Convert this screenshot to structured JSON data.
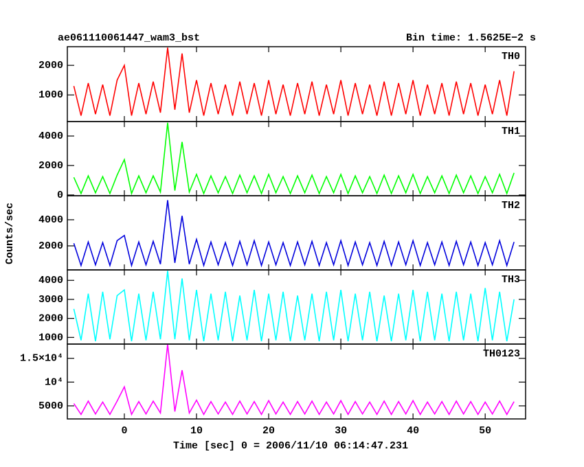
{
  "chart_data": [
    {
      "type": "line",
      "title": "ae061110061447_wam3_bst",
      "subtitle": "Bin time: 1.5625E−2 s",
      "x": [
        -7,
        -6,
        -5,
        -4,
        -3,
        -2,
        -1,
        0,
        1,
        2,
        3,
        4,
        5,
        6,
        7,
        8,
        9,
        10,
        11,
        12,
        13,
        14,
        15,
        16,
        17,
        18,
        19,
        20,
        21,
        22,
        23,
        24,
        25,
        26,
        27,
        28,
        29,
        30,
        31,
        32,
        33,
        34,
        35,
        36,
        37,
        38,
        39,
        40,
        41,
        42,
        43,
        44,
        45,
        46,
        47,
        48,
        49,
        50,
        51,
        52,
        53,
        54
      ],
      "series": [
        {
          "name": "TH0",
          "color": "#ff0000",
          "values": [
            1300,
            300,
            1400,
            350,
            1350,
            300,
            1500,
            2000,
            300,
            1400,
            350,
            1450,
            400,
            2600,
            500,
            2400,
            400,
            1500,
            300,
            1400,
            350,
            1350,
            300,
            1450,
            350,
            1400,
            300,
            1500,
            350,
            1350,
            300,
            1400,
            350,
            1450,
            300,
            1350,
            350,
            1500,
            300,
            1400,
            350,
            1350,
            300,
            1450,
            300,
            1400,
            350,
            1500,
            300,
            1350,
            350,
            1400,
            300,
            1450,
            350,
            1400,
            300,
            1350,
            350,
            1500,
            300,
            1800
          ]
        }
      ],
      "xlim": [
        -7.9,
        55.6
      ],
      "xticks": [
        0,
        10,
        20,
        30,
        40,
        50
      ],
      "ylim": [
        100,
        2630
      ],
      "yticks": [
        1000,
        2000
      ]
    },
    {
      "type": "line",
      "x": [
        -7,
        -6,
        -5,
        -4,
        -3,
        -2,
        -1,
        0,
        1,
        2,
        3,
        4,
        5,
        6,
        7,
        8,
        9,
        10,
        11,
        12,
        13,
        14,
        15,
        16,
        17,
        18,
        19,
        20,
        21,
        22,
        23,
        24,
        25,
        26,
        27,
        28,
        29,
        30,
        31,
        32,
        33,
        34,
        35,
        36,
        37,
        38,
        39,
        40,
        41,
        42,
        43,
        44,
        45,
        46,
        47,
        48,
        49,
        50,
        51,
        52,
        53,
        54
      ],
      "series": [
        {
          "name": "TH1",
          "color": "#00ff00",
          "values": [
            1200,
            100,
            1300,
            150,
            1250,
            100,
            1350,
            2400,
            100,
            1300,
            150,
            1300,
            200,
            4900,
            300,
            3600,
            200,
            1400,
            100,
            1300,
            150,
            1250,
            100,
            1350,
            150,
            1300,
            100,
            1400,
            150,
            1250,
            100,
            1300,
            150,
            1350,
            100,
            1250,
            150,
            1400,
            100,
            1300,
            150,
            1250,
            100,
            1350,
            100,
            1300,
            150,
            1400,
            100,
            1250,
            150,
            1300,
            100,
            1350,
            150,
            1300,
            100,
            1250,
            150,
            1400,
            100,
            1500
          ]
        }
      ],
      "xlim": [
        -7.9,
        55.6
      ],
      "xticks": [
        0,
        10,
        20,
        30,
        40,
        50
      ],
      "ylim": [
        -50,
        4980
      ],
      "yticks": [
        0,
        2000,
        4000
      ]
    },
    {
      "type": "line",
      "ylabel": "Counts/sec",
      "x": [
        -7,
        -6,
        -5,
        -4,
        -3,
        -2,
        -1,
        0,
        1,
        2,
        3,
        4,
        5,
        6,
        7,
        8,
        9,
        10,
        11,
        12,
        13,
        14,
        15,
        16,
        17,
        18,
        19,
        20,
        21,
        22,
        23,
        24,
        25,
        26,
        27,
        28,
        29,
        30,
        31,
        32,
        33,
        34,
        35,
        36,
        37,
        38,
        39,
        40,
        41,
        42,
        43,
        44,
        45,
        46,
        47,
        48,
        49,
        50,
        51,
        52,
        53,
        54
      ],
      "series": [
        {
          "name": "TH2",
          "color": "#0000dd",
          "values": [
            2200,
            500,
            2300,
            550,
            2250,
            500,
            2400,
            2800,
            500,
            2300,
            550,
            2350,
            600,
            5500,
            700,
            4300,
            600,
            2500,
            500,
            2300,
            550,
            2250,
            500,
            2350,
            550,
            2400,
            500,
            2300,
            550,
            2250,
            500,
            2300,
            550,
            2350,
            500,
            2250,
            550,
            2400,
            500,
            2300,
            550,
            2250,
            500,
            2350,
            500,
            2300,
            550,
            2400,
            500,
            2250,
            550,
            2300,
            500,
            2350,
            550,
            2300,
            500,
            2250,
            550,
            2400,
            500,
            2300
          ]
        }
      ],
      "xlim": [
        -7.9,
        55.6
      ],
      "xticks": [
        0,
        10,
        20,
        30,
        40,
        50
      ],
      "ylim": [
        160,
        5840
      ],
      "yticks": [
        2000,
        4000
      ]
    },
    {
      "type": "line",
      "x": [
        -7,
        -6,
        -5,
        -4,
        -3,
        -2,
        -1,
        0,
        1,
        2,
        3,
        4,
        5,
        6,
        7,
        8,
        9,
        10,
        11,
        12,
        13,
        14,
        15,
        16,
        17,
        18,
        19,
        20,
        21,
        22,
        23,
        24,
        25,
        26,
        27,
        28,
        29,
        30,
        31,
        32,
        33,
        34,
        35,
        36,
        37,
        38,
        39,
        40,
        41,
        42,
        43,
        44,
        45,
        46,
        47,
        48,
        49,
        50,
        51,
        52,
        53,
        54
      ],
      "series": [
        {
          "name": "TH3",
          "color": "#00ffff",
          "values": [
            2500,
            850,
            3300,
            800,
            3400,
            900,
            3200,
            3500,
            800,
            3300,
            850,
            3400,
            900,
            4500,
            900,
            4100,
            850,
            3500,
            800,
            3300,
            850,
            3400,
            800,
            3200,
            850,
            3500,
            800,
            3300,
            850,
            3400,
            800,
            3200,
            850,
            3300,
            800,
            3400,
            850,
            3500,
            800,
            3300,
            850,
            3400,
            800,
            3200,
            800,
            3300,
            850,
            3500,
            800,
            3400,
            850,
            3300,
            800,
            3400,
            850,
            3300,
            800,
            3600,
            850,
            3400,
            800,
            3000
          ]
        }
      ],
      "xlim": [
        -7.9,
        55.6
      ],
      "xticks": [
        0,
        10,
        20,
        30,
        40,
        50
      ],
      "ylim": [
        650,
        4550
      ],
      "yticks": [
        1000,
        2000,
        3000,
        4000
      ]
    },
    {
      "type": "line",
      "xlabel": "Time [sec] 0 = 2006/11/10 06:14:47.231",
      "x": [
        -7,
        -6,
        -5,
        -4,
        -3,
        -2,
        -1,
        0,
        1,
        2,
        3,
        4,
        5,
        6,
        7,
        8,
        9,
        10,
        11,
        12,
        13,
        14,
        15,
        16,
        17,
        18,
        19,
        20,
        21,
        22,
        23,
        24,
        25,
        26,
        27,
        28,
        29,
        30,
        31,
        32,
        33,
        34,
        35,
        36,
        37,
        38,
        39,
        40,
        41,
        42,
        43,
        44,
        45,
        46,
        47,
        48,
        49,
        50,
        51,
        52,
        53,
        54
      ],
      "series": [
        {
          "name": "TH0123",
          "color": "#ff00ff",
          "values": [
            5500,
            3200,
            6000,
            3300,
            5800,
            3200,
            6000,
            9000,
            3200,
            5900,
            3300,
            6000,
            3500,
            18000,
            3800,
            12500,
            3500,
            6200,
            3200,
            5900,
            3300,
            5800,
            3200,
            6000,
            3300,
            5900,
            3200,
            6100,
            3300,
            5800,
            3200,
            5900,
            3300,
            6000,
            3200,
            5800,
            3300,
            6100,
            3200,
            5900,
            3300,
            5800,
            3200,
            6000,
            3200,
            5900,
            3300,
            6100,
            3200,
            5800,
            3300,
            5900,
            3200,
            6000,
            3300,
            5900,
            3200,
            5800,
            3300,
            6000,
            3200,
            5900
          ]
        }
      ],
      "xlim": [
        -7.9,
        55.6
      ],
      "xticks": [
        0,
        10,
        20,
        30,
        40,
        50
      ],
      "ylim": [
        2250,
        18000
      ],
      "yticks": [
        5000,
        {
          "value": 10000,
          "label": "10⁴"
        },
        {
          "value": 15000,
          "label": "1.5×10⁴"
        }
      ]
    }
  ]
}
